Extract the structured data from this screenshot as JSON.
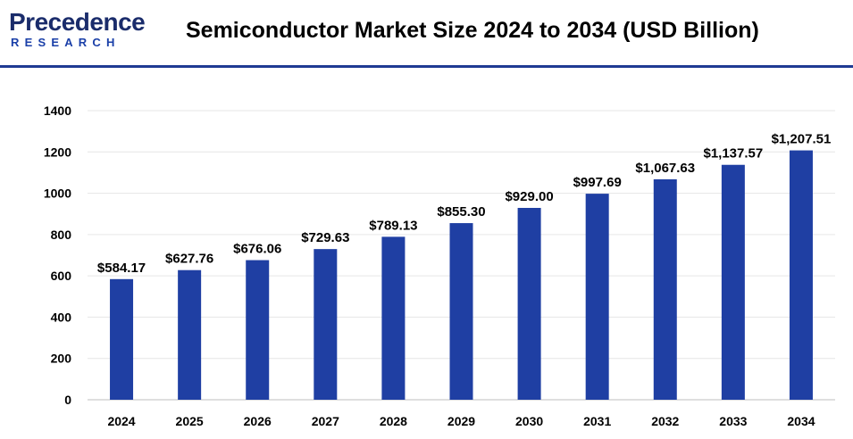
{
  "logo": {
    "main": "Precedence",
    "sub": "RESEARCH"
  },
  "colors": {
    "bar": "#1f3fa3",
    "brand": "#1a2c6b",
    "rule": "#1f3a93",
    "grid": "#e6e6e6"
  },
  "chart_data": {
    "type": "bar",
    "title": "Semiconductor Market Size 2024 to 2034 (USD Billion)",
    "xlabel": "",
    "ylabel": "",
    "categories": [
      "2024",
      "2025",
      "2026",
      "2027",
      "2028",
      "2029",
      "2030",
      "2031",
      "2032",
      "2033",
      "2034"
    ],
    "values": [
      584.17,
      627.76,
      676.06,
      729.63,
      789.13,
      855.3,
      929.0,
      997.69,
      1067.63,
      1137.57,
      1207.51
    ],
    "data_labels": [
      "$584.17",
      "$627.76",
      "$676.06",
      "$729.63",
      "$789.13",
      "$855.30",
      "$929.00",
      "$997.69",
      "$1,067.63",
      "$1,137.57",
      "$1,207.51"
    ],
    "ylim": [
      0,
      1400
    ],
    "yticks": [
      0,
      200,
      400,
      600,
      800,
      1000,
      1200,
      1400
    ],
    "grid": true,
    "legend": "none"
  }
}
